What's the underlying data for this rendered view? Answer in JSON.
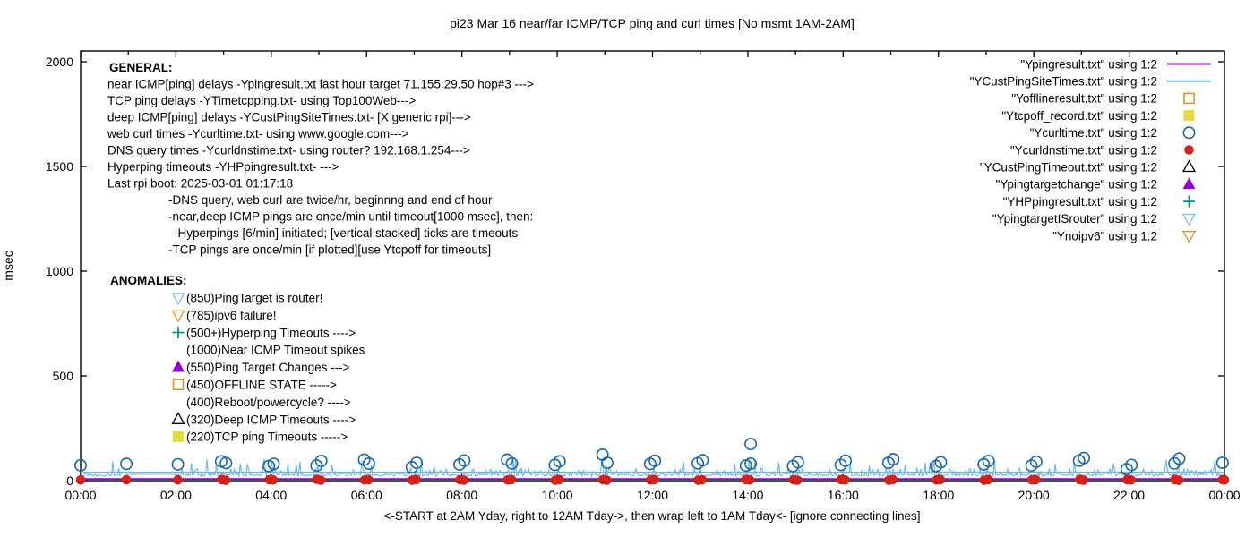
{
  "colors": {
    "purple": "#9400d3",
    "lightblue": "#6ab7e3",
    "lightblue2": "#7cc4e8",
    "blue": "#1668a8",
    "red": "#d6201a",
    "orange": "#de9521",
    "yellow": "#e5dc3c",
    "teal": "#00947c",
    "black": "#000000"
  },
  "chart_data": {
    "type": "line",
    "title": "pi23 Mar 16  near/far ICMP/TCP ping and curl times [No msmt 1AM-2AM]",
    "xlabel": "<-START at 2AM Yday, right to 12AM Tday->, then wrap left to 1AM Tday<- [ignore connecting lines]",
    "ylabel": "msec",
    "grid": false,
    "legend_position": "top-right-inside",
    "ylim": [
      0,
      2050
    ],
    "y_ticks": [
      0,
      500,
      1000,
      1500,
      2000
    ],
    "x_range_hours": [
      0,
      24
    ],
    "x_major_tick_labels": [
      "00:00",
      "02:00",
      "04:00",
      "06:00",
      "08:00",
      "10:00",
      "12:00",
      "14:00",
      "16:00",
      "18:00",
      "20:00",
      "22:00",
      "00:00"
    ],
    "series": [
      {
        "name": "\"Ypingresult.txt\" using 1:2",
        "kind": "line",
        "color": "purple",
        "constant_value": 8
      },
      {
        "name": "\"YCustPingSiteTimes.txt\" using 1:2",
        "kind": "jitter-line",
        "color": "lightblue",
        "baseline": 24,
        "no_measurement_gap_hours": [
          1,
          2
        ],
        "gap_value": 30,
        "wraparound_line_value": 41,
        "seed": 13
      },
      {
        "name": "\"Yofflineresult.txt\" using 1:2",
        "kind": "scatter",
        "marker": "open-square",
        "color": "orange",
        "points": []
      },
      {
        "name": "\"Ytcpoff_record.txt\" using 1:2",
        "kind": "scatter",
        "marker": "filled-square",
        "color": "yellow",
        "points": []
      },
      {
        "name": "\"Ycurltime.txt\" using 1:2",
        "kind": "scatter",
        "marker": "open-circle",
        "color": "blue",
        "points": [
          [
            0.0,
            73
          ],
          [
            0.96,
            80
          ],
          [
            2.04,
            78
          ],
          [
            2.95,
            92
          ],
          [
            3.05,
            84
          ],
          [
            3.95,
            70
          ],
          [
            4.05,
            80
          ],
          [
            4.95,
            72
          ],
          [
            5.05,
            94
          ],
          [
            5.95,
            100
          ],
          [
            6.05,
            81
          ],
          [
            6.95,
            64
          ],
          [
            7.05,
            85
          ],
          [
            7.95,
            77
          ],
          [
            8.05,
            96
          ],
          [
            8.95,
            100
          ],
          [
            9.05,
            82
          ],
          [
            9.95,
            75
          ],
          [
            10.05,
            92
          ],
          [
            10.95,
            124
          ],
          [
            11.05,
            85
          ],
          [
            11.95,
            80
          ],
          [
            12.05,
            95
          ],
          [
            12.95,
            83
          ],
          [
            13.05,
            97
          ],
          [
            13.96,
            72
          ],
          [
            14.06,
            81
          ],
          [
            14.06,
            175
          ],
          [
            14.95,
            70
          ],
          [
            15.05,
            88
          ],
          [
            15.95,
            75
          ],
          [
            16.05,
            95
          ],
          [
            16.95,
            85
          ],
          [
            17.05,
            102
          ],
          [
            17.95,
            70
          ],
          [
            18.05,
            88
          ],
          [
            18.95,
            78
          ],
          [
            19.05,
            94
          ],
          [
            19.95,
            72
          ],
          [
            20.05,
            90
          ],
          [
            20.95,
            95
          ],
          [
            21.05,
            108
          ],
          [
            21.95,
            55
          ],
          [
            22.05,
            75
          ],
          [
            22.95,
            82
          ],
          [
            23.05,
            105
          ],
          [
            23.96,
            85
          ]
        ]
      },
      {
        "name": "\"Ycurldnstime.txt\" using 1:2",
        "kind": "scatter",
        "marker": "filled-circle",
        "color": "red",
        "points": [
          [
            0.0,
            3
          ],
          [
            0.96,
            4
          ],
          [
            2.04,
            3
          ],
          [
            2.96,
            5
          ],
          [
            3.04,
            2
          ],
          [
            3.96,
            4
          ],
          [
            4.04,
            3
          ],
          [
            4.96,
            6
          ],
          [
            5.04,
            2
          ],
          [
            5.96,
            3
          ],
          [
            6.04,
            4
          ],
          [
            6.96,
            2
          ],
          [
            7.04,
            5
          ],
          [
            7.96,
            4
          ],
          [
            8.04,
            2
          ],
          [
            8.96,
            3
          ],
          [
            9.04,
            5
          ],
          [
            9.96,
            2
          ],
          [
            10.04,
            4
          ],
          [
            10.96,
            5
          ],
          [
            11.04,
            2
          ],
          [
            11.96,
            3
          ],
          [
            12.04,
            5
          ],
          [
            12.96,
            2
          ],
          [
            13.04,
            4
          ],
          [
            13.96,
            5
          ],
          [
            14.04,
            3
          ],
          [
            14.96,
            4
          ],
          [
            15.04,
            2
          ],
          [
            15.96,
            5
          ],
          [
            16.04,
            3
          ],
          [
            16.96,
            2
          ],
          [
            17.04,
            5
          ],
          [
            17.96,
            3
          ],
          [
            18.04,
            4
          ],
          [
            18.96,
            2
          ],
          [
            19.04,
            5
          ],
          [
            19.96,
            3
          ],
          [
            20.04,
            4
          ],
          [
            20.96,
            5
          ],
          [
            21.04,
            2
          ],
          [
            21.96,
            4
          ],
          [
            22.04,
            3
          ],
          [
            22.96,
            5
          ],
          [
            23.04,
            2
          ],
          [
            23.96,
            4
          ],
          [
            24.0,
            3
          ]
        ]
      },
      {
        "name": "\"YCustPingTimeout.txt\" using 1:2",
        "kind": "scatter",
        "marker": "open-triangle-up",
        "color": "black",
        "points": []
      },
      {
        "name": "\"Ypingtargetchange\" using 1:2",
        "kind": "scatter",
        "marker": "filled-triangle-up",
        "color": "purple",
        "points": []
      },
      {
        "name": "\"YHPpingresult.txt\" using 1:2",
        "kind": "scatter",
        "marker": "plus",
        "color": "teal",
        "points": []
      },
      {
        "name": "\"YpingtargetISrouter\" using 1:2",
        "kind": "scatter",
        "marker": "open-triangle-down",
        "color": "lightblue2",
        "points": []
      },
      {
        "name": "\"Ynoipv6\" using 1:2",
        "kind": "scatter",
        "marker": "open-triangle-down",
        "color": "orange",
        "points": []
      }
    ],
    "annotations": {
      "general": {
        "header": "GENERAL:",
        "lines": [
          {
            "indent": 0,
            "text": "near ICMP[ping] delays -Ypingresult.txt last hour target 71.155.29.50 hop#3 --->"
          },
          {
            "indent": 0,
            "text": "TCP ping delays -YTimetcpping.txt- using Top100Web--->"
          },
          {
            "indent": 0,
            "text": "deep ICMP[ping] delays -YCustPingSiteTimes.txt- [X generic rpi]--->"
          },
          {
            "indent": 0,
            "text": "web curl times -Ycurltime.txt- using www.google.com--->"
          },
          {
            "indent": 0,
            "text": "DNS query times -Ycurldnstime.txt- using router? 192.168.1.254--->"
          },
          {
            "indent": 0,
            "text": "Hyperping timeouts -YHPpingresult.txt- --->"
          },
          {
            "indent": 0,
            "text": "Last rpi boot: 2025-03-01 01:17:18"
          },
          {
            "indent": 1,
            "text": "-DNS query, web curl are twice/hr, beginnng and end of hour"
          },
          {
            "indent": 1,
            "text": "-near,deep ICMP pings are once/min until timeout[1000 msec], then:"
          },
          {
            "indent": 2,
            "text": "-Hyperpings [6/min] initiated; [vertical stacked] ticks are timeouts"
          },
          {
            "indent": 1,
            "text": "-TCP pings are once/min [if plotted][use Ytcpoff for timeouts]"
          }
        ]
      },
      "anomalies": {
        "header": "ANOMALIES:",
        "items": [
          {
            "marker": "open-triangle-down",
            "color": "lightblue2",
            "label": "(850)PingTarget is router!"
          },
          {
            "marker": "open-triangle-down",
            "color": "orange",
            "label": "(785)ipv6 failure!"
          },
          {
            "marker": "plus",
            "color": "teal",
            "label": "(500+)Hyperping Timeouts ---->"
          },
          {
            "marker": null,
            "color": null,
            "label": "(1000)Near ICMP Timeout spikes"
          },
          {
            "marker": "filled-triangle-up",
            "color": "purple",
            "label": "(550)Ping Target Changes --->"
          },
          {
            "marker": "open-square",
            "color": "orange",
            "label": "(450)OFFLINE STATE ----->"
          },
          {
            "marker": null,
            "color": null,
            "label": "(400)Reboot/powercycle? ---->"
          },
          {
            "marker": "open-triangle-up",
            "color": "black",
            "label": "(320)Deep ICMP Timeouts ---->"
          },
          {
            "marker": "filled-square",
            "color": "yellow",
            "label": "(220)TCP ping Timeouts ----->"
          }
        ]
      }
    }
  }
}
